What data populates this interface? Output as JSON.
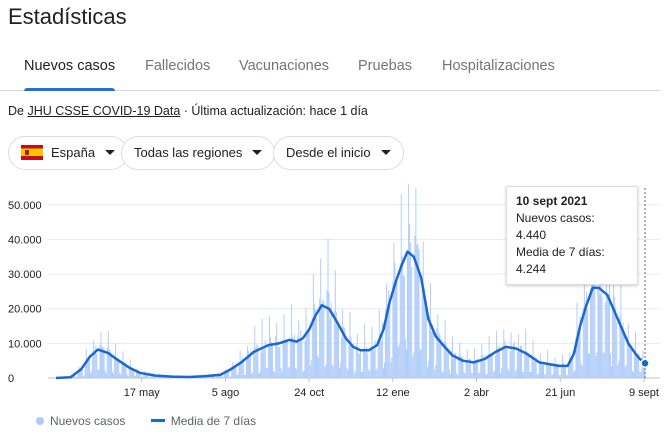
{
  "header": {
    "title": "Estadísticas"
  },
  "tabs": [
    {
      "label": "Nuevos casos",
      "active": true
    },
    {
      "label": "Fallecidos",
      "active": false
    },
    {
      "label": "Vacunaciones",
      "active": false
    },
    {
      "label": "Pruebas",
      "active": false
    },
    {
      "label": "Hospitalizaciones",
      "active": false
    }
  ],
  "source": {
    "prefix": "De ",
    "link": "JHU CSSE COVID-19 Data",
    "suffix": " · Última actualización: hace 1 día"
  },
  "filters": {
    "country": "España",
    "region": "Todas las regiones",
    "period": "Desde el inicio"
  },
  "tooltip": {
    "date": "10 sept 2021",
    "cases_label": "Nuevos casos: 4.440",
    "avg_label": "Media de 7 días: 4.244"
  },
  "legend": {
    "cases": "Nuevos casos",
    "avg": "Media de 7 días"
  },
  "colors": {
    "bars": "#aecbfa",
    "line": "#1967d2",
    "accent": "#1a73e8",
    "grid": "#e8eaed"
  },
  "icons": {
    "flag": "spain-flag-icon",
    "dropdown": "caret-down-icon"
  },
  "chart_data": {
    "type": "bar",
    "title": "",
    "xlabel": "",
    "ylabel": "",
    "ylim": [
      0,
      56000
    ],
    "yticks": [
      {
        "value": 0,
        "label": "0"
      },
      {
        "value": 10000,
        "label": "10.000"
      },
      {
        "value": 20000,
        "label": "20.000"
      },
      {
        "value": 30000,
        "label": "30.000"
      },
      {
        "value": 40000,
        "label": "40.000"
      },
      {
        "value": 50000,
        "label": "50.000"
      }
    ],
    "xticks": [
      {
        "date": "2020-05-17",
        "label": "17 may"
      },
      {
        "date": "2020-08-05",
        "label": "5 ago"
      },
      {
        "date": "2020-10-24",
        "label": "24 oct"
      },
      {
        "date": "2021-01-12",
        "label": "12 ene"
      },
      {
        "date": "2021-04-02",
        "label": "2 abr"
      },
      {
        "date": "2021-06-21",
        "label": "21 jun"
      },
      {
        "date": "2021-09-09",
        "label": "9 sept"
      }
    ],
    "grid": true,
    "legend_position": "bottom",
    "series": [
      {
        "name": "Nuevos casos",
        "type": "bar",
        "note": "daily values, approximated from the 7-day average profile",
        "x_range": [
          "2020-02-25",
          "2021-09-10"
        ]
      },
      {
        "name": "Media de 7 días",
        "type": "line",
        "x": [
          "2020-02-25",
          "2020-03-10",
          "2020-03-20",
          "2020-03-28",
          "2020-04-05",
          "2020-04-15",
          "2020-04-25",
          "2020-05-05",
          "2020-05-15",
          "2020-05-30",
          "2020-06-15",
          "2020-07-01",
          "2020-07-15",
          "2020-07-31",
          "2020-08-10",
          "2020-08-20",
          "2020-09-01",
          "2020-09-15",
          "2020-09-25",
          "2020-10-05",
          "2020-10-12",
          "2020-10-18",
          "2020-10-24",
          "2020-10-30",
          "2020-11-05",
          "2020-11-12",
          "2020-11-20",
          "2020-11-28",
          "2020-12-05",
          "2020-12-12",
          "2020-12-20",
          "2020-12-28",
          "2021-01-03",
          "2021-01-09",
          "2021-01-15",
          "2021-01-21",
          "2021-01-26",
          "2021-02-01",
          "2021-02-08",
          "2021-02-15",
          "2021-02-22",
          "2021-03-01",
          "2021-03-10",
          "2021-03-20",
          "2021-03-30",
          "2021-04-10",
          "2021-04-20",
          "2021-04-30",
          "2021-05-10",
          "2021-05-20",
          "2021-06-01",
          "2021-06-10",
          "2021-06-20",
          "2021-06-28",
          "2021-07-04",
          "2021-07-10",
          "2021-07-16",
          "2021-07-22",
          "2021-07-28",
          "2021-08-05",
          "2021-08-15",
          "2021-08-25",
          "2021-09-01",
          "2021-09-05",
          "2021-09-10"
        ],
        "values": [
          0,
          200,
          2500,
          6000,
          8200,
          7200,
          5000,
          3000,
          1500,
          700,
          400,
          300,
          500,
          900,
          2500,
          4500,
          7500,
          9500,
          10000,
          11000,
          10500,
          11500,
          14000,
          18000,
          21000,
          20000,
          16000,
          11500,
          9000,
          8000,
          8000,
          9500,
          14000,
          22000,
          28000,
          33000,
          36500,
          35000,
          29000,
          17000,
          12000,
          9500,
          6500,
          5000,
          4500,
          5500,
          7500,
          9000,
          8500,
          7000,
          4500,
          4000,
          3500,
          3500,
          7000,
          15000,
          21000,
          26000,
          26000,
          24000,
          17000,
          10000,
          7000,
          5500,
          4244
        ]
      }
    ],
    "selected": {
      "date": "2021-09-10",
      "value": 4440,
      "avg": 4244
    }
  }
}
